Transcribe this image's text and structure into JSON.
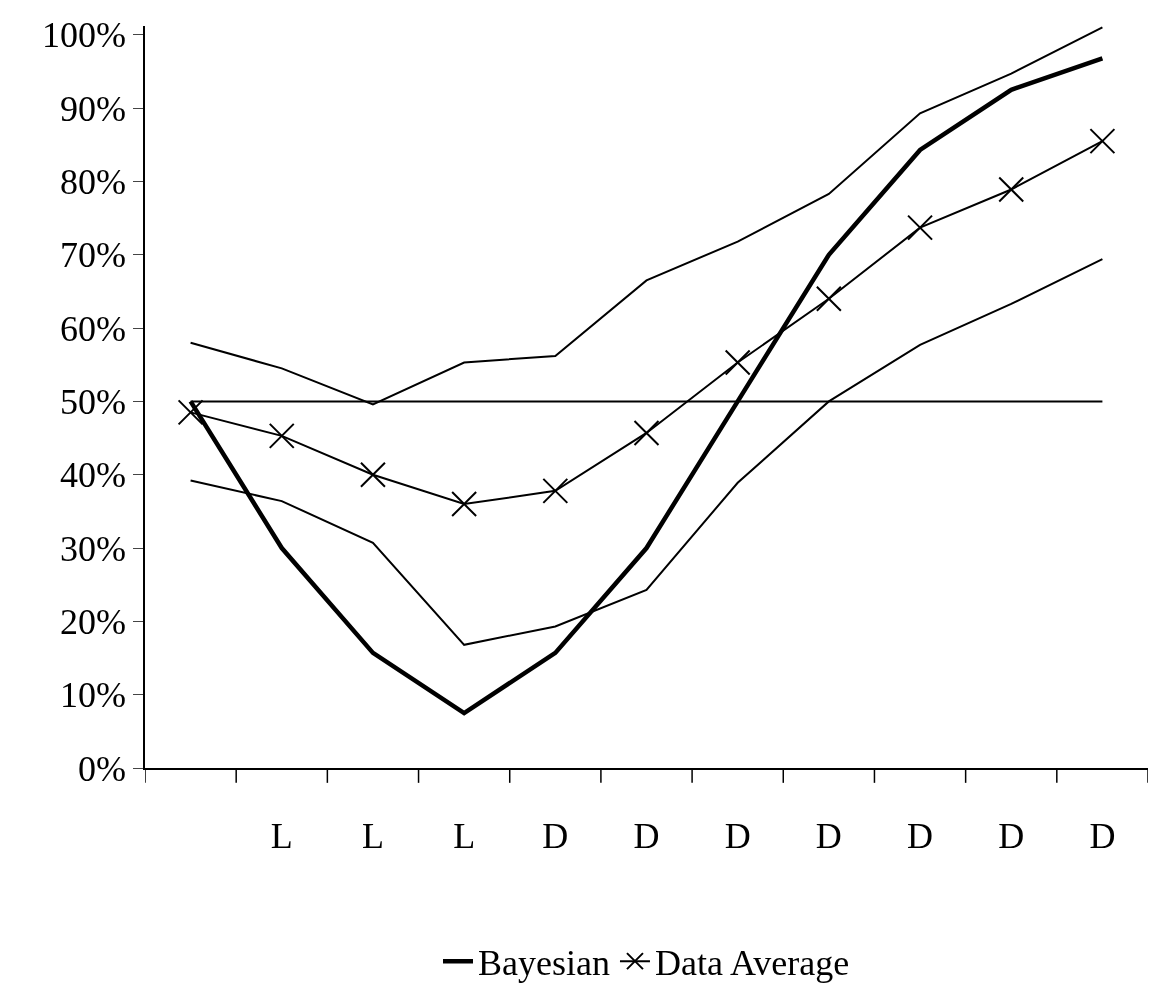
{
  "chart_data": {
    "type": "line",
    "categories": [
      null,
      "L",
      "L",
      "L",
      "D",
      "D",
      "D",
      "D",
      "D",
      "D",
      "D"
    ],
    "series": [
      {
        "name": "Bayesian",
        "color": "#000000",
        "marker": "none",
        "values": [
          50,
          30,
          15.7,
          7.5,
          15.7,
          30,
          50,
          70,
          84.3,
          92.5,
          96.8
        ]
      },
      {
        "name": "Data Average",
        "color": "#000000",
        "marker": "cross",
        "values": [
          48.5,
          45.3,
          40,
          36,
          37.8,
          45.7,
          55.3,
          64,
          73.7,
          78.9,
          85.5
        ]
      },
      {
        "color": "#000000",
        "marker": "none",
        "values": [
          58,
          54.5,
          49.6,
          55.3,
          56.2,
          66.5,
          71.8,
          78.3,
          89.3,
          94.7,
          101
        ]
      },
      {
        "color": "#000000",
        "marker": "none",
        "values": [
          39.2,
          36.4,
          30.7,
          16.8,
          19.3,
          24.3,
          38.9,
          50,
          57.7,
          63.3,
          69.4
        ]
      }
    ],
    "ref_lines": [
      {
        "axis": "y",
        "value": 50,
        "color": "#000000"
      }
    ],
    "ylim": [
      0,
      101.2
    ],
    "yticks": [
      {
        "value": 0,
        "label": "0%"
      },
      {
        "value": 10,
        "label": "10%"
      },
      {
        "value": 20,
        "label": "20%"
      },
      {
        "value": 30,
        "label": "30%"
      },
      {
        "value": 40,
        "label": "40%"
      },
      {
        "value": 50,
        "label": "50%"
      },
      {
        "value": 60,
        "label": "60%"
      },
      {
        "value": 70,
        "label": "70%"
      },
      {
        "value": 80,
        "label": "80%"
      },
      {
        "value": 90,
        "label": "90%"
      },
      {
        "value": 100,
        "label": "100%"
      }
    ],
    "legend": "bottom"
  }
}
